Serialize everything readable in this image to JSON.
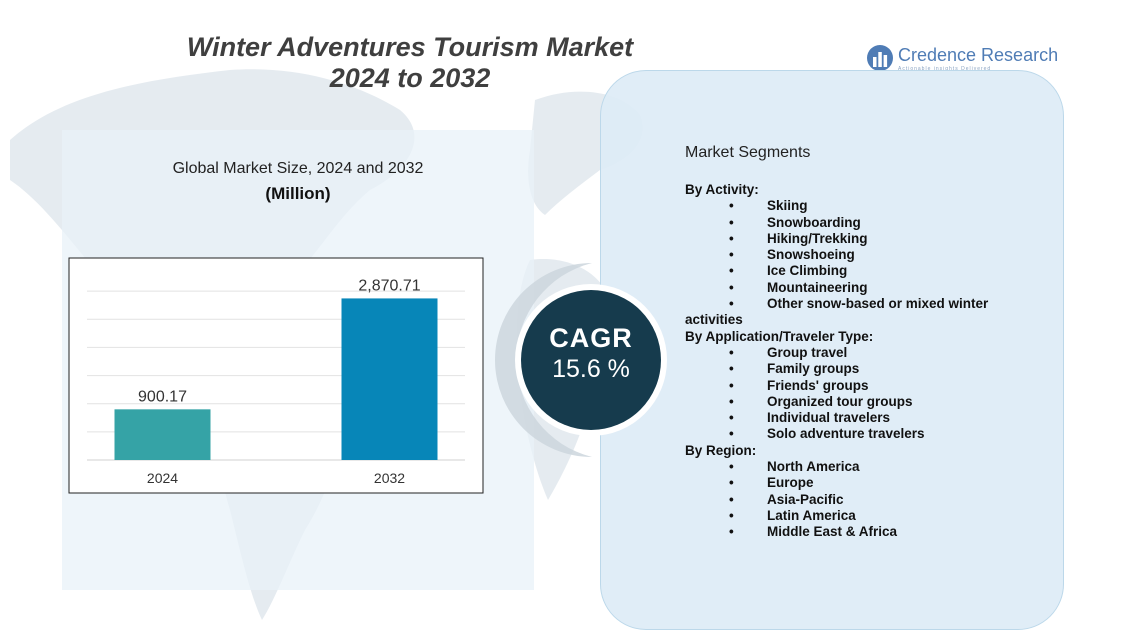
{
  "header": {
    "title_line1": "Winter Adventures Tourism Market",
    "title_line2": "2024 to 2032"
  },
  "logo": {
    "name": "Credence Research",
    "tagline": "Actionable insights Delivered"
  },
  "chart_data": {
    "type": "bar",
    "title": "Global Market Size, 2024 and 2032",
    "subtitle": "(Million)",
    "categories": [
      "2024",
      "2032"
    ],
    "values": [
      900.17,
      2870.71
    ],
    "value_labels": [
      "900.17",
      "2,870.71"
    ],
    "colors": [
      "#35a3a6",
      "#0786b8"
    ],
    "ylim": [
      0,
      3500
    ],
    "grid": true,
    "xlabel": "",
    "ylabel": ""
  },
  "cagr": {
    "label": "CAGR",
    "value": "15.6 %"
  },
  "segments": {
    "title": "Market Segments",
    "groups": [
      {
        "heading": "By Activity:",
        "items": [
          "Skiing",
          "Snowboarding",
          "Hiking/Trekking",
          "Snowshoeing",
          "Ice Climbing",
          "Mountaineering",
          "Other snow-based or mixed winter activities"
        ]
      },
      {
        "heading": "By Application/Traveler Type:",
        "items": [
          "Group travel",
          "Family groups",
          "Friends' groups",
          "Organized tour groups",
          "Individual travelers",
          "Solo adventure travelers"
        ]
      },
      {
        "heading": "By Region:",
        "items": [
          "North America",
          "Europe",
          "Asia-Pacific",
          "Latin America",
          "Middle East & Africa"
        ]
      }
    ]
  },
  "colors": {
    "cagr_circle": "#163b4d",
    "panel_bg": "#ddecf6"
  }
}
